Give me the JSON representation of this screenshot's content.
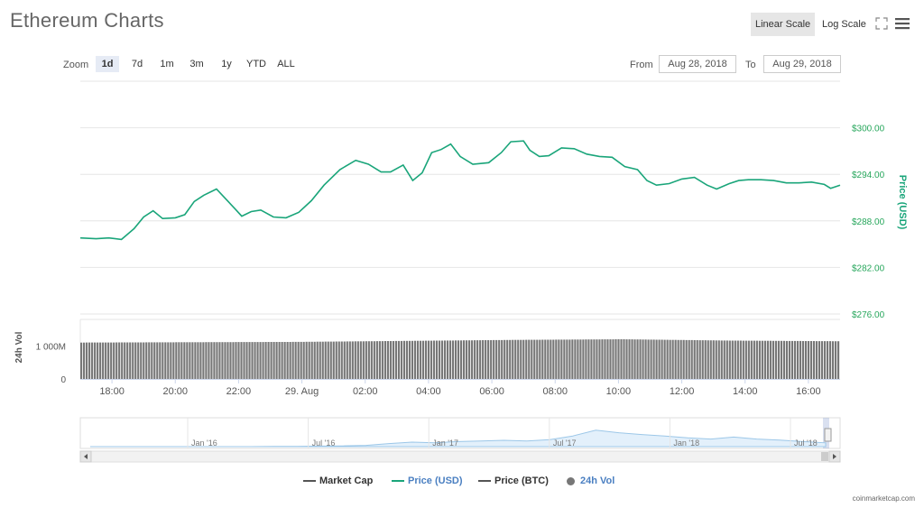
{
  "header": {
    "title": "Ethereum Charts",
    "linear_scale": "Linear Scale",
    "log_scale": "Log Scale"
  },
  "zoom": {
    "label": "Zoom",
    "buttons": [
      "1d",
      "7d",
      "1m",
      "3m",
      "1y",
      "YTD",
      "ALL"
    ],
    "active": "1d"
  },
  "range": {
    "from_label": "From",
    "from": "Aug 28, 2018",
    "to_label": "To",
    "to": "Aug 29, 2018"
  },
  "legend": {
    "market_cap": "Market Cap",
    "price_usd": "Price (USD)",
    "price_btc": "Price (BTC)",
    "vol": "24h Vol"
  },
  "credit": "coinmarketcap.com",
  "colors": {
    "price": "#1aa57a",
    "price_label": "#26a65b",
    "volume": "#777777",
    "navigator": "#9cc7e8",
    "legend_usd": "#4a7fc1"
  },
  "chart_data": {
    "type": "line",
    "title": "Ethereum Charts",
    "price_axis": {
      "label": "Price (USD)",
      "ticks": [
        "$300.00",
        "$294.00",
        "$288.00",
        "$282.00",
        "$276.00"
      ],
      "tick_values": [
        300,
        294,
        288,
        282,
        276
      ],
      "ylim": [
        276,
        306
      ]
    },
    "volume_axis": {
      "label": "24h Vol",
      "ticks": [
        "1 000M",
        "0"
      ],
      "tick_values": [
        1000,
        0
      ],
      "unit": "M"
    },
    "x_ticks": [
      "18:00",
      "20:00",
      "22:00",
      "29. Aug",
      "02:00",
      "04:00",
      "06:00",
      "08:00",
      "10:00",
      "12:00",
      "14:00",
      "16:00"
    ],
    "x_tick_hours": [
      18,
      20,
      22,
      24,
      26,
      28,
      30,
      32,
      34,
      36,
      38,
      40
    ],
    "x_range_hours": [
      17,
      41
    ],
    "series": [
      {
        "name": "Price (USD)",
        "hours": [
          17.0,
          17.5,
          17.9,
          18.3,
          18.7,
          19.0,
          19.3,
          19.6,
          20.0,
          20.3,
          20.6,
          20.9,
          21.3,
          21.6,
          21.9,
          22.1,
          22.4,
          22.7,
          23.1,
          23.5,
          23.9,
          24.3,
          24.7,
          25.2,
          25.7,
          26.1,
          26.5,
          26.8,
          27.2,
          27.5,
          27.8,
          28.1,
          28.4,
          28.7,
          29.0,
          29.4,
          29.9,
          30.3,
          30.6,
          31.0,
          31.2,
          31.5,
          31.8,
          32.2,
          32.6,
          33.0,
          33.4,
          33.8,
          34.2,
          34.6,
          34.9,
          35.2,
          35.6,
          36.0,
          36.4,
          36.8,
          37.1,
          37.5,
          37.8,
          38.1,
          38.5,
          38.9,
          39.3,
          39.7,
          40.1,
          40.5,
          40.7,
          41.0
        ],
        "values": [
          285.8,
          285.7,
          285.8,
          285.6,
          287.0,
          288.5,
          289.3,
          288.3,
          288.4,
          288.8,
          290.5,
          291.3,
          292.1,
          290.8,
          289.5,
          288.6,
          289.2,
          289.4,
          288.5,
          288.4,
          289.1,
          290.6,
          292.6,
          294.6,
          295.8,
          295.3,
          294.3,
          294.3,
          295.2,
          293.2,
          294.2,
          296.8,
          297.2,
          297.9,
          296.3,
          295.3,
          295.5,
          296.8,
          298.2,
          298.3,
          297.1,
          296.3,
          296.4,
          297.4,
          297.3,
          296.6,
          296.3,
          296.2,
          295.0,
          294.6,
          293.2,
          292.6,
          292.8,
          293.4,
          293.6,
          292.6,
          292.1,
          292.8,
          293.2,
          293.3,
          293.3,
          293.2,
          292.9,
          292.9,
          293.0,
          292.7,
          292.2,
          292.6
        ]
      },
      {
        "name": "24h Vol",
        "note": "approximately constant throughout the day",
        "values_millions": [
          1100,
          1110,
          1120,
          1150,
          1180,
          1200,
          1160,
          1140
        ]
      }
    ],
    "navigator": {
      "labels": [
        "Jan '16",
        "Jul '16",
        "Jan '17",
        "Jul '17",
        "Jan '18",
        "Jul '18"
      ]
    }
  }
}
